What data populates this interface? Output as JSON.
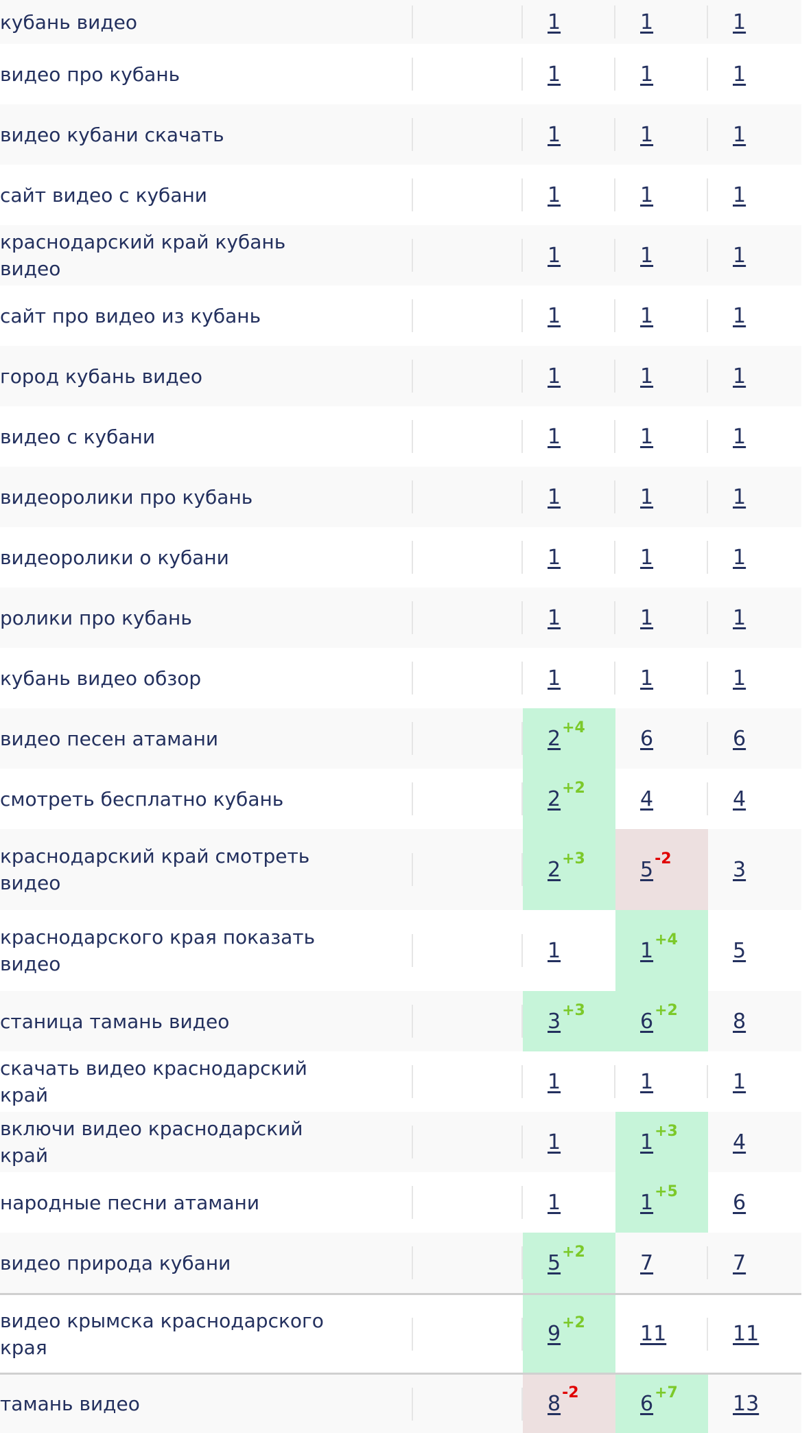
{
  "rows": [
    {
      "query": "кубань видео",
      "c1": "1",
      "c2": "1",
      "c3": "1"
    },
    {
      "query": "видео про кубань",
      "c1": "1",
      "c2": "1",
      "c3": "1"
    },
    {
      "query": "видео кубани скачать",
      "c1": "1",
      "c2": "1",
      "c3": "1"
    },
    {
      "query": "сайт видео с кубани",
      "c1": "1",
      "c2": "1",
      "c3": "1"
    },
    {
      "query": "краснодарский край кубань видео",
      "c1": "1",
      "c2": "1",
      "c3": "1"
    },
    {
      "query": "сайт про видео из кубань",
      "c1": "1",
      "c2": "1",
      "c3": "1"
    },
    {
      "query": "город кубань видео",
      "c1": "1",
      "c2": "1",
      "c3": "1"
    },
    {
      "query": "видео с кубани",
      "c1": "1",
      "c2": "1",
      "c3": "1"
    },
    {
      "query": "видеоролики про кубань",
      "c1": "1",
      "c2": "1",
      "c3": "1"
    },
    {
      "query": "видеоролики о кубани",
      "c1": "1",
      "c2": "1",
      "c3": "1"
    },
    {
      "query": "ролики про кубань",
      "c1": "1",
      "c2": "1",
      "c3": "1"
    },
    {
      "query": "кубань видео обзор",
      "c1": "1",
      "c2": "1",
      "c3": "1"
    },
    {
      "query": "видео песен атамани",
      "c1": "2",
      "c1_delta": "+4",
      "c2": "6",
      "c3": "6"
    },
    {
      "query": "смотреть бесплатно кубань",
      "c1": "2",
      "c1_delta": "+2",
      "c2": "4",
      "c3": "4"
    },
    {
      "query": "краснодарский край смотреть видео",
      "c1": "2",
      "c1_delta": "+3",
      "c2": "5",
      "c2_delta": "-2",
      "c3": "3"
    },
    {
      "query": "краснодарского края показать видео",
      "c1": "1",
      "c2": "1",
      "c2_delta": "+4",
      "c3": "5"
    },
    {
      "query": "станица тамань видео",
      "c1": "3",
      "c1_delta": "+3",
      "c2": "6",
      "c2_delta": "+2",
      "c3": "8"
    },
    {
      "query": "скачать видео краснодарский край",
      "c1": "1",
      "c2": "1",
      "c3": "1"
    },
    {
      "query": "включи видео краснодарский край",
      "c1": "1",
      "c2": "1",
      "c2_delta": "+3",
      "c3": "4"
    },
    {
      "query": "народные песни атамани",
      "c1": "1",
      "c2": "1",
      "c2_delta": "+5",
      "c3": "6"
    },
    {
      "query": "видео природа кубани",
      "c1": "5",
      "c1_delta": "+2",
      "c2": "7",
      "c3": "7"
    },
    {
      "query": "видео крымска краснодарского края",
      "c1": "9",
      "c1_delta": "+2",
      "c2": "11",
      "c3": "11"
    },
    {
      "query": "тамань видео",
      "c1": "8",
      "c1_delta": "-2",
      "c2": "6",
      "c2_delta": "+7",
      "c3": "13"
    }
  ],
  "colors": {
    "text": "#23305e",
    "up_bg": "#c6f4d9",
    "down_bg": "#ede0e0",
    "plus": "#7cc92a",
    "minus": "#e00000",
    "row_alt": "#f9f9f9"
  }
}
